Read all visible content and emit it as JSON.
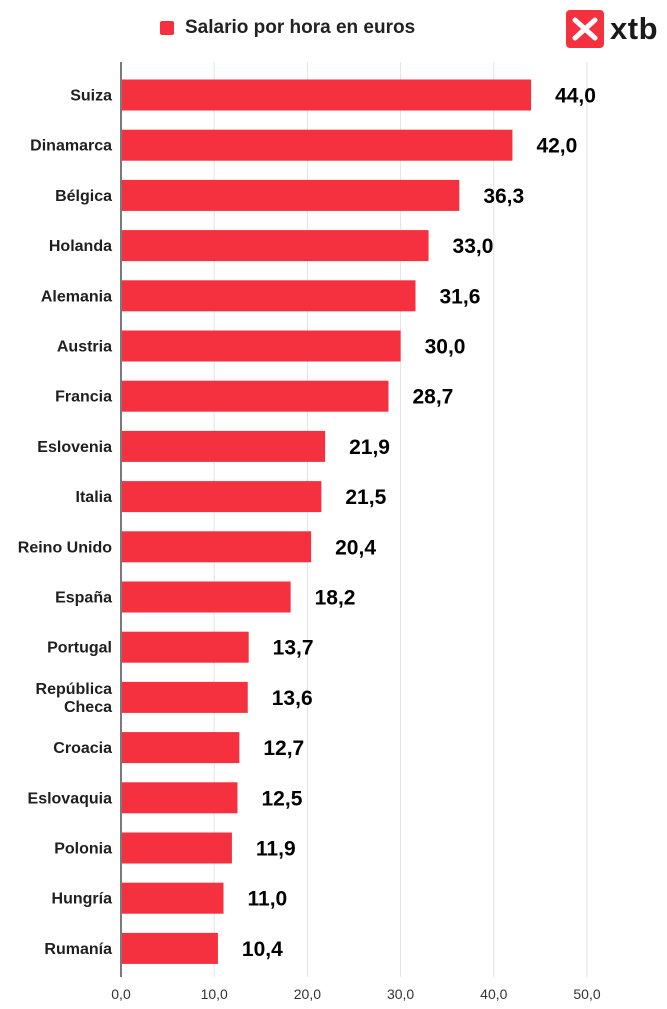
{
  "legend": {
    "label": "Salario por hora en euros"
  },
  "logo": {
    "text": "xtb",
    "icon": "xtb-cross-icon"
  },
  "colors": {
    "bar": "#F5303F",
    "grid": "#E3E3E3",
    "axis": "#333333"
  },
  "chart_data": {
    "type": "bar",
    "orientation": "horizontal",
    "categories": [
      "Suiza",
      "Dinamarca",
      "Bélgica",
      "Holanda",
      "Alemania",
      "Austria",
      "Francia",
      "Eslovenia",
      "Italia",
      "Reino Unido",
      "España",
      "Portugal",
      "República Checa",
      "Croacia",
      "Eslovaquia",
      "Polonia",
      "Hungría",
      "Rumanía"
    ],
    "category_lines": [
      [
        "Suiza"
      ],
      [
        "Dinamarca"
      ],
      [
        "Bélgica"
      ],
      [
        "Holanda"
      ],
      [
        "Alemania"
      ],
      [
        "Austria"
      ],
      [
        "Francia"
      ],
      [
        "Eslovenia"
      ],
      [
        "Italia"
      ],
      [
        "Reino Unido"
      ],
      [
        "España"
      ],
      [
        "Portugal"
      ],
      [
        "República",
        "Checa"
      ],
      [
        "Croacia"
      ],
      [
        "Eslovaquia"
      ],
      [
        "Polonia"
      ],
      [
        "Hungría"
      ],
      [
        "Rumanía"
      ]
    ],
    "series": [
      {
        "name": "Salario por hora en euros",
        "values": [
          44.0,
          42.0,
          36.3,
          33.0,
          31.6,
          30.0,
          28.7,
          21.9,
          21.5,
          20.4,
          18.2,
          13.7,
          13.6,
          12.7,
          12.5,
          11.9,
          11.0,
          10.4
        ],
        "value_labels": [
          "44,0",
          "42,0",
          "36,3",
          "33,0",
          "31,6",
          "30,0",
          "28,7",
          "21,9",
          "21,5",
          "20,4",
          "18,2",
          "13,7",
          "13,6",
          "12,7",
          "12,5",
          "11,9",
          "11,0",
          "10,4"
        ]
      }
    ],
    "xlim": [
      0,
      50
    ],
    "xticks": [
      0,
      10,
      20,
      30,
      40,
      50
    ],
    "xtick_labels": [
      "0,0",
      "10,0",
      "20,0",
      "30,0",
      "40,0",
      "50,0"
    ],
    "grid": "vertical",
    "legend_position": "top-center"
  }
}
